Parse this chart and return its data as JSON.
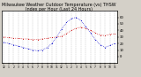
{
  "title": "Milwaukee Weather Outdoor Temperature (vs) THSW Index per Hour (Last 24 Hours)",
  "title_fontsize": 3.5,
  "bg_color": "#d4d0c8",
  "plot_bg_color": "#ffffff",
  "red_color": "#cc0000",
  "blue_color": "#0000cc",
  "black_color": "#000000",
  "grid_color": "#aaaaaa",
  "hours": [
    0,
    1,
    2,
    3,
    4,
    5,
    6,
    7,
    8,
    9,
    10,
    11,
    12,
    13,
    14,
    15,
    16,
    17,
    18,
    19,
    20,
    21,
    22,
    23
  ],
  "temp": [
    30,
    29,
    28,
    28,
    27,
    27,
    26,
    26,
    27,
    28,
    29,
    30,
    31,
    35,
    40,
    43,
    45,
    43,
    40,
    36,
    33,
    32,
    34,
    35
  ],
  "thsw": [
    22,
    20,
    18,
    16,
    14,
    12,
    10,
    9,
    10,
    14,
    20,
    30,
    42,
    52,
    58,
    60,
    55,
    46,
    36,
    26,
    18,
    14,
    17,
    20
  ],
  "ylim_min": -10,
  "ylim_max": 70,
  "yticks": [
    0,
    10,
    20,
    30,
    40,
    50,
    60
  ],
  "ytick_labels": [
    "0",
    "10",
    "20",
    "30",
    "40",
    "50",
    "60"
  ],
  "xtick_labels": [
    "12",
    "1",
    "2",
    "3",
    "4",
    "5",
    "6",
    "7",
    "8",
    "9",
    "10",
    "11",
    "12",
    "1",
    "2",
    "3",
    "4",
    "5",
    "6",
    "7",
    "8",
    "9",
    "10",
    "11"
  ],
  "markersize": 1.2,
  "linewidth": 0.0,
  "dotsize": 1.5
}
